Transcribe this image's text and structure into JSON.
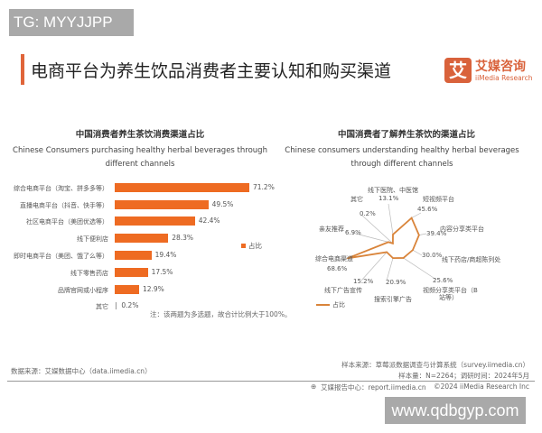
{
  "watermarks": {
    "top": "TG: MYYJJPP",
    "bottom": "www.qdbgyp.com"
  },
  "header": {
    "title": "电商平台为养生饮品消费者主要认知和购买渠道",
    "logo_glyph": "艾",
    "logo_cn": "艾媒咨询",
    "logo_en": "iiMedia Research"
  },
  "chart_data": [
    {
      "type": "bar",
      "orientation": "horizontal",
      "title": "中国消费者养生茶饮消费渠道占比",
      "subtitle": "Chinese Consumers purchasing healthy herbal beverages through different channels",
      "categories": [
        "综合电商平台（淘宝、拼多多等）",
        "直播电商平台（抖音、快手等）",
        "社区电商平台（美团优选等）",
        "线下便利店",
        "即时电商平台（美团、饿了么等）",
        "线下零售药店",
        "品牌官网或小程序",
        "其它"
      ],
      "values": [
        71.2,
        49.5,
        42.4,
        28.3,
        19.4,
        17.5,
        12.9,
        0.2
      ],
      "labels": [
        "71.2%",
        "49.5%",
        "42.4%",
        "28.3%",
        "19.4%",
        "17.5%",
        "12.9%",
        "0.2%"
      ],
      "legend": "占比",
      "color": "#ee6b22",
      "note": "注：该两题为多选题，故合计比例大于100%。"
    },
    {
      "type": "radar",
      "title": "中国消费者了解养生茶饮的渠道占比",
      "subtitle": "Chinese consumers understanding healthy herbal beverages through different channels",
      "categories": [
        "线下医院、中医馆",
        "短视频平台",
        "内容分享类平台",
        "线下药店/商超陈列处",
        "视频分享类平台（B站等）",
        "搜索引擎广告",
        "线下广告宣传",
        "综合电商渠道",
        "亲友推荐",
        "其它"
      ],
      "values": [
        13.1,
        45.6,
        39.4,
        30.0,
        25.6,
        20.9,
        15.2,
        68.6,
        6.9,
        0.2
      ],
      "labels": [
        "13.1%",
        "45.6%",
        "39.4%",
        "30.0%",
        "25.6%",
        "20.9%",
        "15.2%",
        "68.6%",
        "6.9%",
        "0.2%"
      ],
      "legend": "占比",
      "color": "#d9843a"
    }
  ],
  "radar_label_lines": {
    "video_share_1": "视频分享类平台（B",
    "video_share_2": "站等）"
  },
  "footer": {
    "data_source": "数据来源：艾媒数据中心（data.iimedia.cn）",
    "sample_source": "样本来源：草莓派数据调查与计算系统（survey.iimedia.cn）",
    "sample_size": "样本量：N=2264；调研时间：2024年5月",
    "report": "艾媒报告中心：report.iimedia.cn",
    "copyright": "©2024  iiMedia Research  Inc"
  }
}
